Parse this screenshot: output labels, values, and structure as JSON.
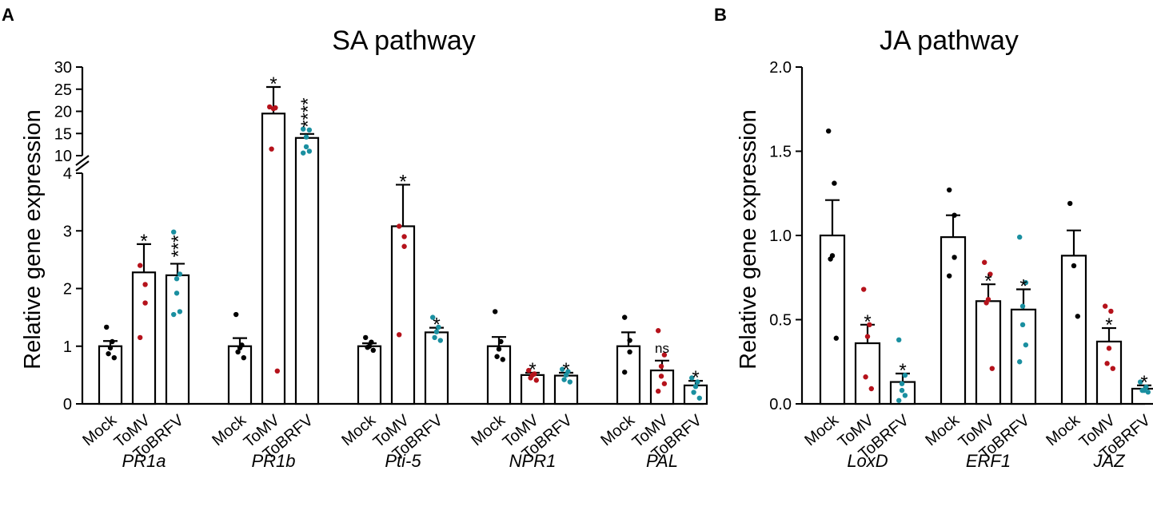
{
  "figure": {
    "colors": {
      "mock": "#000000",
      "tomv": "#b5121b",
      "tobrfv": "#1a8fa0",
      "bar_fill": "#ffffff",
      "axis": "#000000"
    }
  },
  "chart_data": [
    {
      "type": "bar",
      "panel_label": "A",
      "title": "SA pathway",
      "ylabel": "Relative gene expression",
      "axis_break": true,
      "ylim_lower": [
        0,
        4
      ],
      "ylim_upper": [
        10,
        30
      ],
      "yticks_lower": [
        "0",
        "1",
        "2",
        "3",
        "4"
      ],
      "yticks_upper": [
        "10",
        "15",
        "20",
        "25",
        "30"
      ],
      "conditions": [
        "Mock",
        "ToMV",
        "ToBRFV"
      ],
      "groups": [
        {
          "gene": "PR1a",
          "bars": [
            {
              "condition": "Mock",
              "mean": 1.0,
              "sem": 0.09,
              "points": [
                1.33,
                1.08,
                0.97,
                0.87,
                0.8
              ],
              "sig": ""
            },
            {
              "condition": "ToMV",
              "mean": 2.28,
              "sem": 0.49,
              "points": [
                2.4,
                2.07,
                1.75,
                1.15
              ],
              "sig": "*"
            },
            {
              "condition": "ToBRFV",
              "mean": 2.23,
              "sem": 0.2,
              "points": [
                2.98,
                2.25,
                2.17,
                1.92,
                1.6,
                1.55
              ],
              "sig": "***"
            }
          ]
        },
        {
          "gene": "PR1b",
          "bars": [
            {
              "condition": "Mock",
              "mean": 1.0,
              "sem": 0.14,
              "points": [
                1.55,
                1.02,
                0.97,
                0.9,
                0.8
              ],
              "sig": ""
            },
            {
              "condition": "ToMV",
              "mean": 19.5,
              "sem": 6.0,
              "points": [
                21.0,
                20.8,
                20.6,
                11.5,
                0.57
              ],
              "sig": "*"
            },
            {
              "condition": "ToBRFV",
              "mean": 14.0,
              "sem": 0.9,
              "points": [
                16.0,
                15.8,
                14.2,
                12.0,
                11.0,
                10.6
              ],
              "sig": "****"
            }
          ]
        },
        {
          "gene": "Pti-5",
          "bars": [
            {
              "condition": "Mock",
              "mean": 1.0,
              "sem": 0.05,
              "points": [
                1.15,
                1.07,
                1.0,
                0.98,
                0.93
              ],
              "sig": ""
            },
            {
              "condition": "ToMV",
              "mean": 3.08,
              "sem": 0.72,
              "points": [
                3.08,
                2.9,
                2.73,
                1.2
              ],
              "sig": "*"
            },
            {
              "condition": "ToBRFV",
              "mean": 1.24,
              "sem": 0.08,
              "points": [
                1.5,
                1.33,
                1.25,
                1.15,
                1.1
              ],
              "sig": "*"
            }
          ]
        },
        {
          "gene": "NPR1",
          "bars": [
            {
              "condition": "Mock",
              "mean": 1.0,
              "sem": 0.16,
              "points": [
                1.6,
                1.08,
                0.95,
                0.82,
                0.77
              ],
              "sig": ""
            },
            {
              "condition": "ToMV",
              "mean": 0.5,
              "sem": 0.04,
              "points": [
                0.58,
                0.52,
                0.5,
                0.45,
                0.41
              ],
              "sig": "*"
            },
            {
              "condition": "ToBRFV",
              "mean": 0.49,
              "sem": 0.05,
              "points": [
                0.6,
                0.56,
                0.5,
                0.42,
                0.38
              ],
              "sig": "*"
            }
          ]
        },
        {
          "gene": "PAL",
          "bars": [
            {
              "condition": "Mock",
              "mean": 1.0,
              "sem": 0.24,
              "points": [
                1.5,
                1.1,
                0.9,
                0.55
              ],
              "sig": ""
            },
            {
              "condition": "ToMV",
              "mean": 0.58,
              "sem": 0.17,
              "points": [
                1.27,
                0.85,
                0.65,
                0.48,
                0.35,
                0.22
              ],
              "sig": "ns"
            },
            {
              "condition": "ToBRFV",
              "mean": 0.32,
              "sem": 0.08,
              "points": [
                0.45,
                0.38,
                0.3,
                0.2,
                0.1
              ],
              "sig": "*"
            }
          ]
        }
      ]
    },
    {
      "type": "bar",
      "panel_label": "B",
      "title": "JA pathway",
      "ylabel": "Relative gene expression",
      "axis_break": false,
      "ylim": [
        0,
        2.0
      ],
      "yticks": [
        "0.0",
        "0.5",
        "1.0",
        "1.5",
        "2.0"
      ],
      "conditions": [
        "Mock",
        "ToMV",
        "ToBRFV"
      ],
      "groups": [
        {
          "gene": "LoxD",
          "bars": [
            {
              "condition": "Mock",
              "mean": 1.0,
              "sem": 0.21,
              "points": [
                1.62,
                1.31,
                0.88,
                0.86,
                0.39
              ],
              "sig": ""
            },
            {
              "condition": "ToMV",
              "mean": 0.36,
              "sem": 0.11,
              "points": [
                0.68,
                0.47,
                0.4,
                0.16,
                0.09
              ],
              "sig": "*"
            },
            {
              "condition": "ToBRFV",
              "mean": 0.13,
              "sem": 0.05,
              "points": [
                0.38,
                0.17,
                0.12,
                0.08,
                0.05,
                0.02
              ],
              "sig": "*"
            }
          ]
        },
        {
          "gene": "ERF1",
          "bars": [
            {
              "condition": "Mock",
              "mean": 0.99,
              "sem": 0.13,
              "points": [
                1.27,
                1.12,
                0.87,
                0.76
              ],
              "sig": ""
            },
            {
              "condition": "ToMV",
              "mean": 0.61,
              "sem": 0.1,
              "points": [
                0.84,
                0.77,
                0.62,
                0.6,
                0.21
              ],
              "sig": "*"
            },
            {
              "condition": "ToBRFV",
              "mean": 0.56,
              "sem": 0.12,
              "points": [
                0.99,
                0.72,
                0.58,
                0.47,
                0.35,
                0.25
              ],
              "sig": "*"
            }
          ]
        },
        {
          "gene": "JAZ",
          "bars": [
            {
              "condition": "Mock",
              "mean": 0.88,
              "sem": 0.15,
              "points": [
                1.19,
                0.82,
                0.52
              ],
              "sig": ""
            },
            {
              "condition": "ToMV",
              "mean": 0.37,
              "sem": 0.08,
              "points": [
                0.58,
                0.55,
                0.33,
                0.24,
                0.21
              ],
              "sig": "*"
            },
            {
              "condition": "ToBRFV",
              "mean": 0.09,
              "sem": 0.02,
              "points": [
                0.13,
                0.1,
                0.08,
                0.08,
                0.07
              ],
              "sig": "*"
            }
          ]
        }
      ]
    }
  ]
}
